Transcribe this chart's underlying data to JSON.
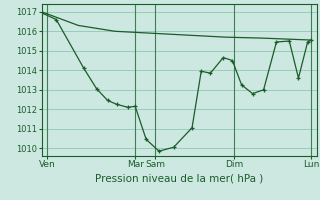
{
  "bg_color": "#cce8e0",
  "plot_bg_color": "#cce8e0",
  "grid_color": "#99ccbb",
  "line_color": "#1a5c2a",
  "xlabel": "Pression niveau de la mer( hPa )",
  "xlabel_fontsize": 7.5,
  "ytick_labels": [
    "1010",
    "1011",
    "1012",
    "1013",
    "1014",
    "1015",
    "1016",
    "1017"
  ],
  "ytick_values": [
    1010,
    1011,
    1012,
    1013,
    1014,
    1015,
    1016,
    1017
  ],
  "ylim": [
    1009.6,
    1017.4
  ],
  "xlim": [
    0,
    15.0
  ],
  "xtick_positions": [
    0.3,
    5.1,
    6.2,
    10.5,
    14.7
  ],
  "xtick_labels": [
    "Ven",
    "Mar",
    "Sam",
    "Dim",
    "Lun"
  ],
  "vline_positions": [
    0.3,
    5.1,
    6.2,
    10.5,
    14.7
  ],
  "line1_x": [
    0.0,
    2.0,
    4.0,
    6.0,
    8.0,
    10.0,
    12.0,
    14.7
  ],
  "line1_y": [
    1017.0,
    1016.3,
    1016.0,
    1015.9,
    1015.8,
    1015.7,
    1015.65,
    1015.55
  ],
  "line2_x": [
    0.0,
    0.8,
    2.3,
    3.0,
    3.6,
    4.1,
    4.7,
    5.1,
    5.7,
    6.4,
    7.2,
    8.2,
    8.7,
    9.2,
    9.9,
    10.4,
    10.9,
    11.5,
    12.1,
    12.8,
    13.5,
    14.0,
    14.5,
    14.7
  ],
  "line2_y": [
    1016.95,
    1016.6,
    1014.1,
    1013.05,
    1012.45,
    1012.25,
    1012.1,
    1012.15,
    1010.45,
    1009.85,
    1010.05,
    1011.05,
    1013.95,
    1013.85,
    1014.65,
    1014.5,
    1013.25,
    1012.8,
    1013.0,
    1015.45,
    1015.5,
    1013.6,
    1015.45,
    1015.55
  ]
}
